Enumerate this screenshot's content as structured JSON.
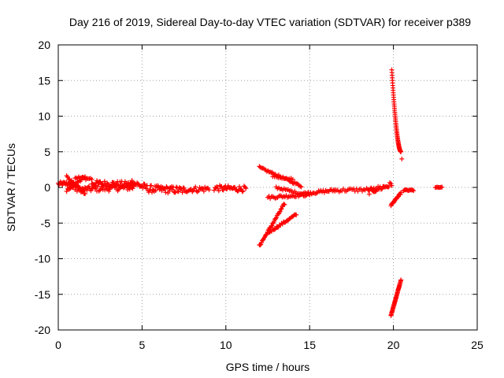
{
  "chart_data": {
    "type": "scatter",
    "title": "Day 216 of 2019, Sidereal Day-to-day VTEC variation (SDTVAR) for receiver p389",
    "xlabel": "GPS time / hours",
    "ylabel": "SDTVAR / TECUs",
    "xlim": [
      0,
      25
    ],
    "ylim": [
      -20,
      20
    ],
    "xticks": [
      "0",
      "5",
      "10",
      "15",
      "20",
      "25"
    ],
    "yticks": [
      "-20",
      "-15",
      "-10",
      "-5",
      "0",
      "5",
      "10",
      "15",
      "20"
    ],
    "grid": true,
    "marker": "plus",
    "color": "#ff0000",
    "segments": [
      {
        "x0": 0.0,
        "x1": 1.0,
        "y0": 0.5,
        "y1": 0.5,
        "n": 25,
        "jitter": 0.3
      },
      {
        "x0": 0.5,
        "x1": 1.6,
        "y0": -0.5,
        "y1": 1.5,
        "n": 20,
        "jitter": 0.2
      },
      {
        "x0": 0.5,
        "x1": 1.6,
        "y0": 1.5,
        "y1": -0.8,
        "n": 20,
        "jitter": 0.2
      },
      {
        "x0": 1.0,
        "x1": 2.0,
        "y0": 1.4,
        "y1": 1.2,
        "n": 15,
        "jitter": 0.2
      },
      {
        "x0": 1.0,
        "x1": 4.5,
        "y0": -0.3,
        "y1": 0.0,
        "n": 60,
        "jitter": 0.4
      },
      {
        "x0": 2.0,
        "x1": 4.5,
        "y0": 0.6,
        "y1": 0.4,
        "n": 50,
        "jitter": 0.4
      },
      {
        "x0": 4.3,
        "x1": 5.5,
        "y0": 0.8,
        "y1": -0.3,
        "n": 25,
        "jitter": 0.5
      },
      {
        "x0": 5.5,
        "x1": 7.5,
        "y0": -0.2,
        "y1": -0.4,
        "n": 45,
        "jitter": 0.5
      },
      {
        "x0": 7.5,
        "x1": 9.0,
        "y0": -0.3,
        "y1": -0.2,
        "n": 25,
        "jitter": 0.4
      },
      {
        "x0": 9.3,
        "x1": 11.2,
        "y0": -0.1,
        "y1": -0.2,
        "n": 35,
        "jitter": 0.4
      },
      {
        "x0": 12.0,
        "x1": 14.5,
        "y0": 2.8,
        "y1": 0.2,
        "n": 40,
        "jitter": 0.15
      },
      {
        "x0": 12.8,
        "x1": 14.0,
        "y0": 1.5,
        "y1": 1.2,
        "n": 12,
        "jitter": 0.1
      },
      {
        "x0": 12.5,
        "x1": 15.0,
        "y0": -1.4,
        "y1": -1.0,
        "n": 35,
        "jitter": 0.2
      },
      {
        "x0": 12.0,
        "x1": 13.5,
        "y0": -8.2,
        "y1": -2.3,
        "n": 35,
        "jitter": 0.15
      },
      {
        "x0": 12.5,
        "x1": 14.2,
        "y0": -6.4,
        "y1": -3.8,
        "n": 30,
        "jitter": 0.15
      },
      {
        "x0": 13.0,
        "x1": 14.5,
        "y0": 0.0,
        "y1": -0.9,
        "n": 20,
        "jitter": 0.15
      },
      {
        "x0": 14.5,
        "x1": 16.5,
        "y0": -0.9,
        "y1": -0.4,
        "n": 30,
        "jitter": 0.2
      },
      {
        "x0": 16.5,
        "x1": 19.0,
        "y0": -0.4,
        "y1": -0.3,
        "n": 30,
        "jitter": 0.25
      },
      {
        "x0": 18.5,
        "x1": 19.9,
        "y0": -0.6,
        "y1": 0.4,
        "n": 25,
        "jitter": 0.4
      },
      {
        "x0": 19.85,
        "x1": 20.45,
        "y0": -2.5,
        "y1": -0.8,
        "n": 20,
        "jitter": 0.1
      },
      {
        "x0": 20.6,
        "x1": 21.2,
        "y0": -0.4,
        "y1": -0.4,
        "n": 12,
        "jitter": 0.1
      },
      {
        "x0": 22.5,
        "x1": 22.9,
        "y0": 0.0,
        "y1": 0.0,
        "n": 8,
        "jitter": 0.05
      },
      {
        "x0": 19.85,
        "x1": 20.45,
        "y0": -18.0,
        "y1": -13.0,
        "n": 45,
        "jitter": 0.05
      },
      {
        "x0": 20.5,
        "x1": 20.5,
        "y0": 4.0,
        "y1": 4.0,
        "n": 1,
        "jitter": 0.0
      }
    ],
    "curve": {
      "x0": 19.9,
      "x1": 20.45,
      "ytop": 16.5,
      "ybottom": 5.0,
      "n": 55
    }
  }
}
